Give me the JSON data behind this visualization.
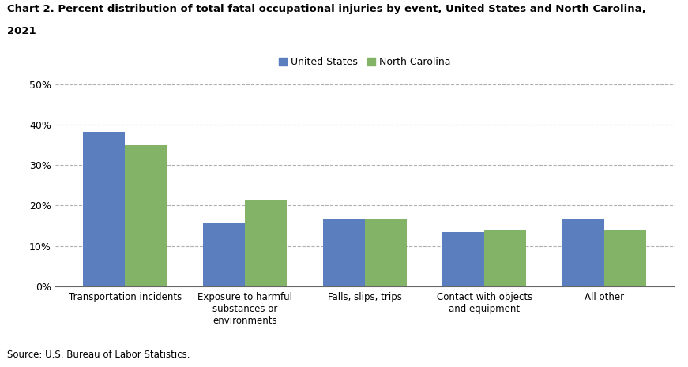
{
  "title_line1": "Chart 2. Percent distribution of total fatal occupational injuries by event, United States and North Carolina,",
  "title_line2": "2021",
  "categories": [
    "Transportation incidents",
    "Exposure to harmful\nsubstances or\nenvironments",
    "Falls, slips, trips",
    "Contact with objects\nand equipment",
    "All other"
  ],
  "us_values": [
    38.2,
    15.5,
    16.5,
    13.5,
    16.5
  ],
  "nc_values": [
    35.0,
    21.5,
    16.5,
    14.0,
    14.0
  ],
  "us_color": "#5b7fbe",
  "nc_color": "#82b366",
  "us_label": "United States",
  "nc_label": "North Carolina",
  "ylim": [
    0,
    50
  ],
  "yticks": [
    0,
    10,
    20,
    30,
    40,
    50
  ],
  "ytick_labels": [
    "0%",
    "10%",
    "20%",
    "30%",
    "40%",
    "50%"
  ],
  "source": "Source: U.S. Bureau of Labor Statistics.",
  "background_color": "#ffffff",
  "grid_color": "#b0b0b0",
  "bar_width": 0.35
}
